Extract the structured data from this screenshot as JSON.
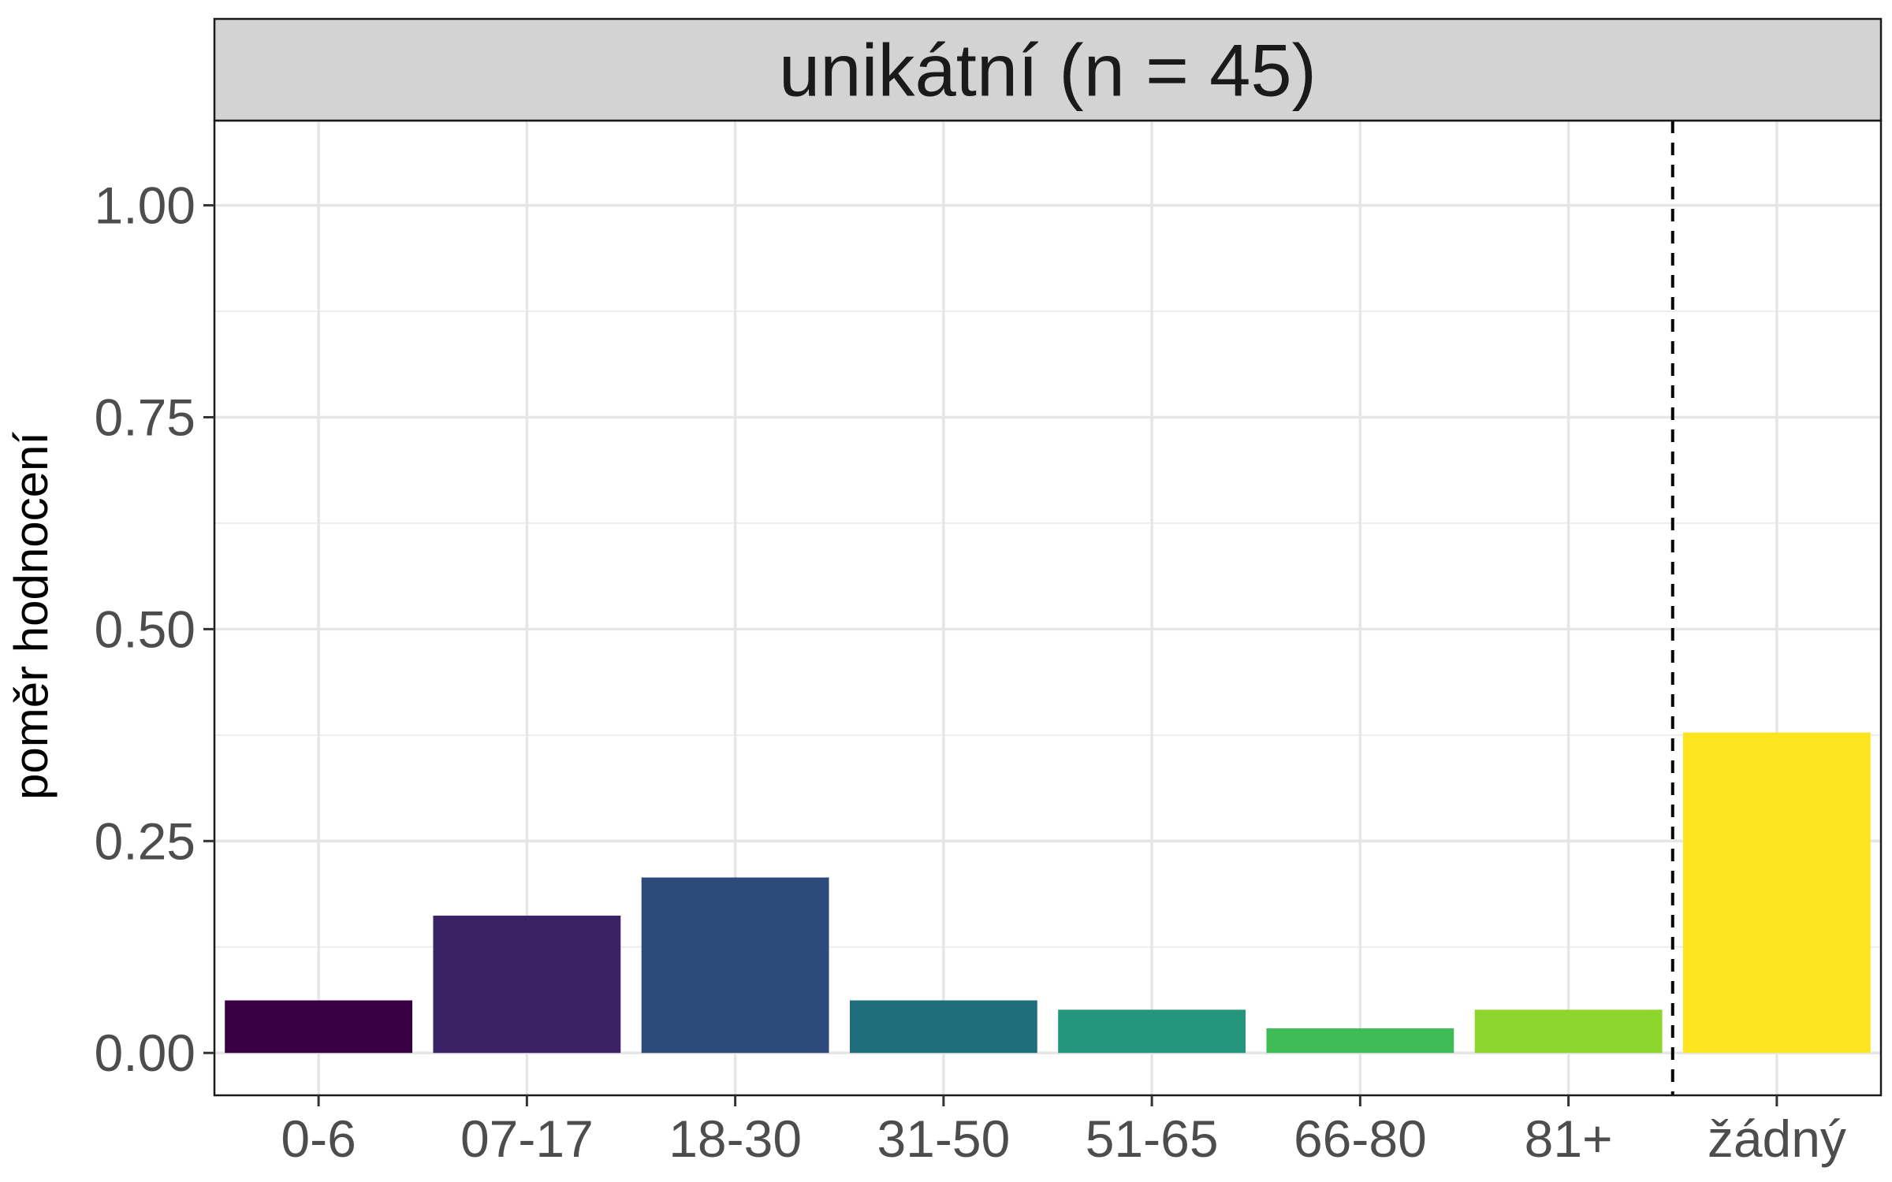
{
  "chart_data": {
    "type": "bar",
    "title": "unikátní (n = 45)",
    "xlabel": "",
    "ylabel": "poměr hodnocení",
    "categories": [
      "0-6",
      "07-17",
      "18-30",
      "31-50",
      "51-65",
      "66-80",
      "81+",
      "žádný"
    ],
    "values": [
      0.062,
      0.162,
      0.207,
      0.062,
      0.051,
      0.029,
      0.051,
      0.378
    ],
    "colors": [
      "#360042",
      "#392266",
      "#2c4a7a",
      "#206e7b",
      "#24967c",
      "#3fbc57",
      "#8ed62e",
      "#fce51f"
    ],
    "ylim": [
      -0.05,
      1.1
    ],
    "yticks": [
      "0.00",
      "0.25",
      "0.50",
      "0.75",
      "1.00"
    ],
    "separator_after": "81+",
    "grid": true,
    "legend": "none"
  }
}
